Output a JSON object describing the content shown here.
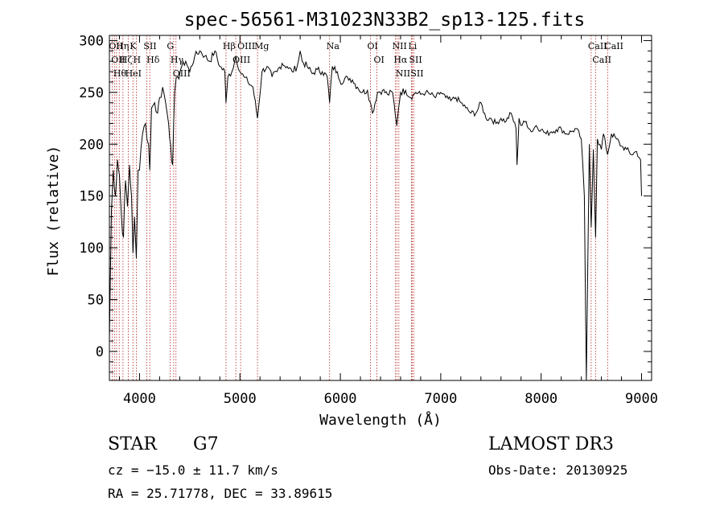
{
  "chart_data": {
    "type": "line",
    "title": "spec-56561-M31023N33B2_sp13-125.fits",
    "xlabel": "Wavelength (Å)",
    "ylabel": "Flux (relative)",
    "xlim": [
      3700,
      9100
    ],
    "ylim": [
      -28,
      305
    ],
    "xticks": [
      4000,
      5000,
      6000,
      7000,
      8000,
      9000
    ],
    "yticks": [
      0,
      50,
      100,
      150,
      200,
      250,
      300
    ],
    "grid": false,
    "series": [
      {
        "values_note_free": true,
        "x": [
          3700,
          3720,
          3740,
          3760,
          3780,
          3800,
          3820,
          3840,
          3860,
          3880,
          3900,
          3920,
          3935,
          3950,
          3968,
          3985,
          4000,
          4030,
          4060,
          4090,
          4102,
          4120,
          4150,
          4180,
          4200,
          4230,
          4260,
          4290,
          4310,
          4330,
          4350,
          4380,
          4420,
          4460,
          4500,
          4550,
          4600,
          4650,
          4700,
          4750,
          4800,
          4850,
          4861,
          4880,
          4920,
          4960,
          5000,
          5040,
          5080,
          5130,
          5175,
          5220,
          5270,
          5320,
          5370,
          5420,
          5470,
          5520,
          5570,
          5600,
          5620,
          5670,
          5720,
          5770,
          5820,
          5870,
          5893,
          5920,
          5970,
          6020,
          6070,
          6120,
          6170,
          6220,
          6270,
          6300,
          6320,
          6370,
          6420,
          6470,
          6520,
          6563,
          6580,
          6600,
          6650,
          6700,
          6750,
          6800,
          6850,
          6900,
          6950,
          7000,
          7050,
          7100,
          7150,
          7200,
          7250,
          7300,
          7350,
          7400,
          7450,
          7500,
          7550,
          7600,
          7650,
          7700,
          7750,
          7760,
          7780,
          7800,
          7850,
          7900,
          7950,
          8000,
          8050,
          8100,
          8150,
          8200,
          8250,
          8300,
          8350,
          8400,
          8430,
          8450,
          8480,
          8498,
          8520,
          8542,
          8560,
          8600,
          8620,
          8662,
          8700,
          8750,
          8800,
          8850,
          8900,
          8950,
          8990,
          9000
        ],
        "y": [
          10,
          135,
          175,
          150,
          185,
          170,
          130,
          110,
          165,
          140,
          180,
          150,
          95,
          130,
          90,
          175,
          175,
          210,
          220,
          200,
          175,
          235,
          240,
          230,
          245,
          255,
          240,
          220,
          200,
          180,
          250,
          265,
          275,
          280,
          270,
          285,
          290,
          285,
          280,
          290,
          275,
          270,
          240,
          265,
          270,
          285,
          270,
          265,
          260,
          255,
          225,
          270,
          275,
          265,
          270,
          278,
          275,
          270,
          275,
          290,
          280,
          275,
          268,
          272,
          270,
          265,
          240,
          275,
          270,
          258,
          265,
          262,
          255,
          250,
          252,
          240,
          230,
          250,
          252,
          248,
          250,
          218,
          235,
          250,
          252,
          245,
          250,
          248,
          250,
          248,
          245,
          250,
          245,
          242,
          245,
          240,
          235,
          230,
          230,
          240,
          225,
          225,
          220,
          225,
          222,
          230,
          215,
          180,
          225,
          218,
          222,
          212,
          218,
          214,
          210,
          212,
          214,
          215,
          210,
          212,
          215,
          205,
          150,
          -28,
          200,
          120,
          195,
          110,
          205,
          195,
          210,
          190,
          210,
          205,
          198,
          195,
          190,
          193,
          185,
          150
        ]
      }
    ],
    "line_markers": [
      {
        "x": 3727,
        "label": "OII"
      },
      {
        "x": 3750,
        "label": "OII"
      },
      {
        "x": 3771,
        "label": "Hθ"
      },
      {
        "x": 3798,
        "label": "Hη"
      },
      {
        "x": 3835,
        "label": "Hζ"
      },
      {
        "x": 3889,
        "label": "HeI"
      },
      {
        "x": 3934,
        "label": "K"
      },
      {
        "x": 3968,
        "label": "H"
      },
      {
        "x": 4072,
        "label": "SII"
      },
      {
        "x": 4102,
        "label": "Hδ"
      },
      {
        "x": 4304,
        "label": "G"
      },
      {
        "x": 4340,
        "label": "Hγ"
      },
      {
        "x": 4363,
        "label": "OIII"
      },
      {
        "x": 4861,
        "label": "Hβ"
      },
      {
        "x": 4959,
        "label": "OIII"
      },
      {
        "x": 5007,
        "label": "OIII"
      },
      {
        "x": 5175,
        "label": "Mg"
      },
      {
        "x": 5893,
        "label": "Na"
      },
      {
        "x": 6300,
        "label": "OI"
      },
      {
        "x": 6364,
        "label": "OI"
      },
      {
        "x": 6548,
        "label": "NII"
      },
      {
        "x": 6563,
        "label": "Hα"
      },
      {
        "x": 6583,
        "label": "NII"
      },
      {
        "x": 6708,
        "label": "Li"
      },
      {
        "x": 6716,
        "label": "SII"
      },
      {
        "x": 6731,
        "label": "SII"
      },
      {
        "x": 8498,
        "label": "CaII"
      },
      {
        "x": 8542,
        "label": "CaII"
      },
      {
        "x": 8662,
        "label": "CaII"
      }
    ]
  },
  "footer": {
    "class": "STAR",
    "subclass": "G7",
    "survey": "LAMOST DR3",
    "cz": "cz = −15.0 ± 11.7 km/s",
    "obs_date": "Obs-Date: 20130925",
    "coords": "RA =  25.71778, DEC =  33.89615"
  }
}
